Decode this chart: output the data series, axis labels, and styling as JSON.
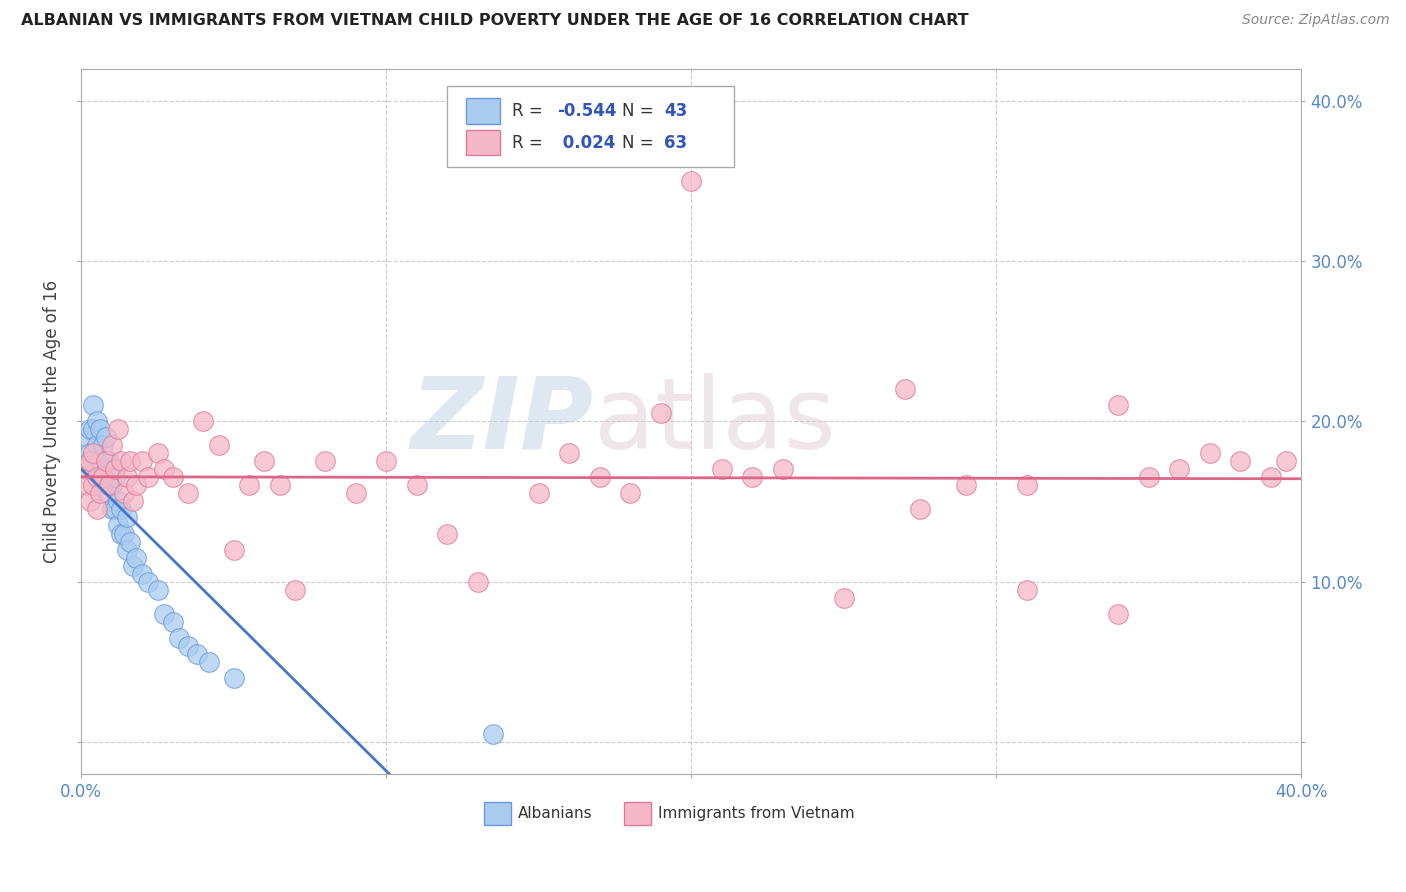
{
  "title": "ALBANIAN VS IMMIGRANTS FROM VIETNAM CHILD POVERTY UNDER THE AGE OF 16 CORRELATION CHART",
  "source": "Source: ZipAtlas.com",
  "ylabel": "Child Poverty Under the Age of 16",
  "xlim": [
    0.0,
    0.4
  ],
  "ylim": [
    -0.02,
    0.42
  ],
  "yticks": [
    0.0,
    0.1,
    0.2,
    0.3,
    0.4
  ],
  "ytick_labels_right": [
    "",
    "10.0%",
    "20.0%",
    "30.0%",
    "40.0%"
  ],
  "xtick_vals": [
    0.0,
    0.1,
    0.2,
    0.3,
    0.4
  ],
  "legend_albanian_R": "-0.544",
  "legend_albanian_N": "43",
  "legend_vietnam_R": "0.024",
  "legend_vietnam_N": "63",
  "albanian_fill": "#aaccf0",
  "albania_edge": "#6699dd",
  "vietnam_fill": "#f5b8c8",
  "vietnam_edge": "#e07898",
  "albanian_line_color": "#4477cc",
  "vietnam_line_color": "#dd6688",
  "tick_color": "#5588cc",
  "background_color": "#ffffff",
  "grid_color": "#cccccc",
  "albanian_x": [
    0.001,
    0.002,
    0.003,
    0.003,
    0.004,
    0.004,
    0.005,
    0.005,
    0.005,
    0.006,
    0.006,
    0.007,
    0.007,
    0.008,
    0.008,
    0.008,
    0.009,
    0.009,
    0.01,
    0.01,
    0.011,
    0.011,
    0.012,
    0.012,
    0.013,
    0.013,
    0.014,
    0.015,
    0.015,
    0.016,
    0.017,
    0.018,
    0.02,
    0.022,
    0.025,
    0.027,
    0.03,
    0.032,
    0.035,
    0.038,
    0.042,
    0.05,
    0.135
  ],
  "albanian_y": [
    0.175,
    0.19,
    0.195,
    0.18,
    0.21,
    0.195,
    0.2,
    0.185,
    0.17,
    0.195,
    0.175,
    0.185,
    0.165,
    0.19,
    0.175,
    0.16,
    0.175,
    0.155,
    0.16,
    0.145,
    0.165,
    0.145,
    0.15,
    0.135,
    0.145,
    0.13,
    0.13,
    0.14,
    0.12,
    0.125,
    0.11,
    0.115,
    0.105,
    0.1,
    0.095,
    0.08,
    0.075,
    0.065,
    0.06,
    0.055,
    0.05,
    0.04,
    0.005
  ],
  "vietnam_x": [
    0.001,
    0.002,
    0.003,
    0.003,
    0.004,
    0.004,
    0.005,
    0.005,
    0.006,
    0.007,
    0.008,
    0.009,
    0.01,
    0.011,
    0.012,
    0.013,
    0.014,
    0.015,
    0.016,
    0.017,
    0.018,
    0.02,
    0.022,
    0.025,
    0.027,
    0.03,
    0.035,
    0.04,
    0.045,
    0.05,
    0.055,
    0.06,
    0.065,
    0.07,
    0.08,
    0.09,
    0.1,
    0.11,
    0.12,
    0.13,
    0.15,
    0.16,
    0.17,
    0.18,
    0.19,
    0.2,
    0.21,
    0.22,
    0.23,
    0.25,
    0.27,
    0.29,
    0.31,
    0.34,
    0.35,
    0.36,
    0.37,
    0.38,
    0.39,
    0.395,
    0.31,
    0.275,
    0.34
  ],
  "vietnam_y": [
    0.17,
    0.16,
    0.175,
    0.15,
    0.18,
    0.16,
    0.165,
    0.145,
    0.155,
    0.165,
    0.175,
    0.16,
    0.185,
    0.17,
    0.195,
    0.175,
    0.155,
    0.165,
    0.175,
    0.15,
    0.16,
    0.175,
    0.165,
    0.18,
    0.17,
    0.165,
    0.155,
    0.2,
    0.185,
    0.12,
    0.16,
    0.175,
    0.16,
    0.095,
    0.175,
    0.155,
    0.175,
    0.16,
    0.13,
    0.1,
    0.155,
    0.18,
    0.165,
    0.155,
    0.205,
    0.35,
    0.17,
    0.165,
    0.17,
    0.09,
    0.22,
    0.16,
    0.095,
    0.21,
    0.165,
    0.17,
    0.18,
    0.175,
    0.165,
    0.175,
    0.16,
    0.145,
    0.08
  ]
}
